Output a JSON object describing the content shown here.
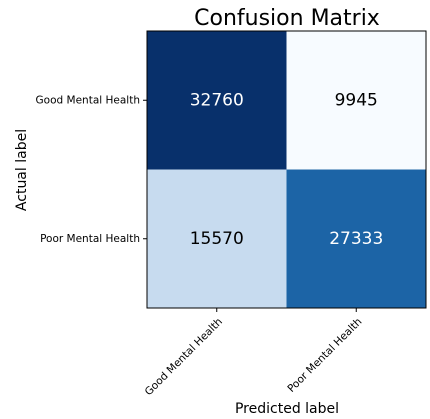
{
  "chart_data": {
    "type": "heatmap",
    "title": "Confusion Matrix",
    "xlabel": "Predicted label",
    "ylabel": "Actual label",
    "x_categories": [
      "Good Mental Health",
      "Poor Mental Health"
    ],
    "y_categories": [
      "Good Mental Health",
      "Poor Mental Health"
    ],
    "values": [
      [
        32760,
        9945
      ],
      [
        15570,
        27333
      ]
    ],
    "colormap": {
      "name": "Blues",
      "min_color": "#f7fbff",
      "mid_light": "#c6dbef",
      "mid_dark": "#2171b5",
      "max_color": "#08306b"
    },
    "text_colors": {
      "light": "#ffffff",
      "dark": "#000000"
    }
  }
}
